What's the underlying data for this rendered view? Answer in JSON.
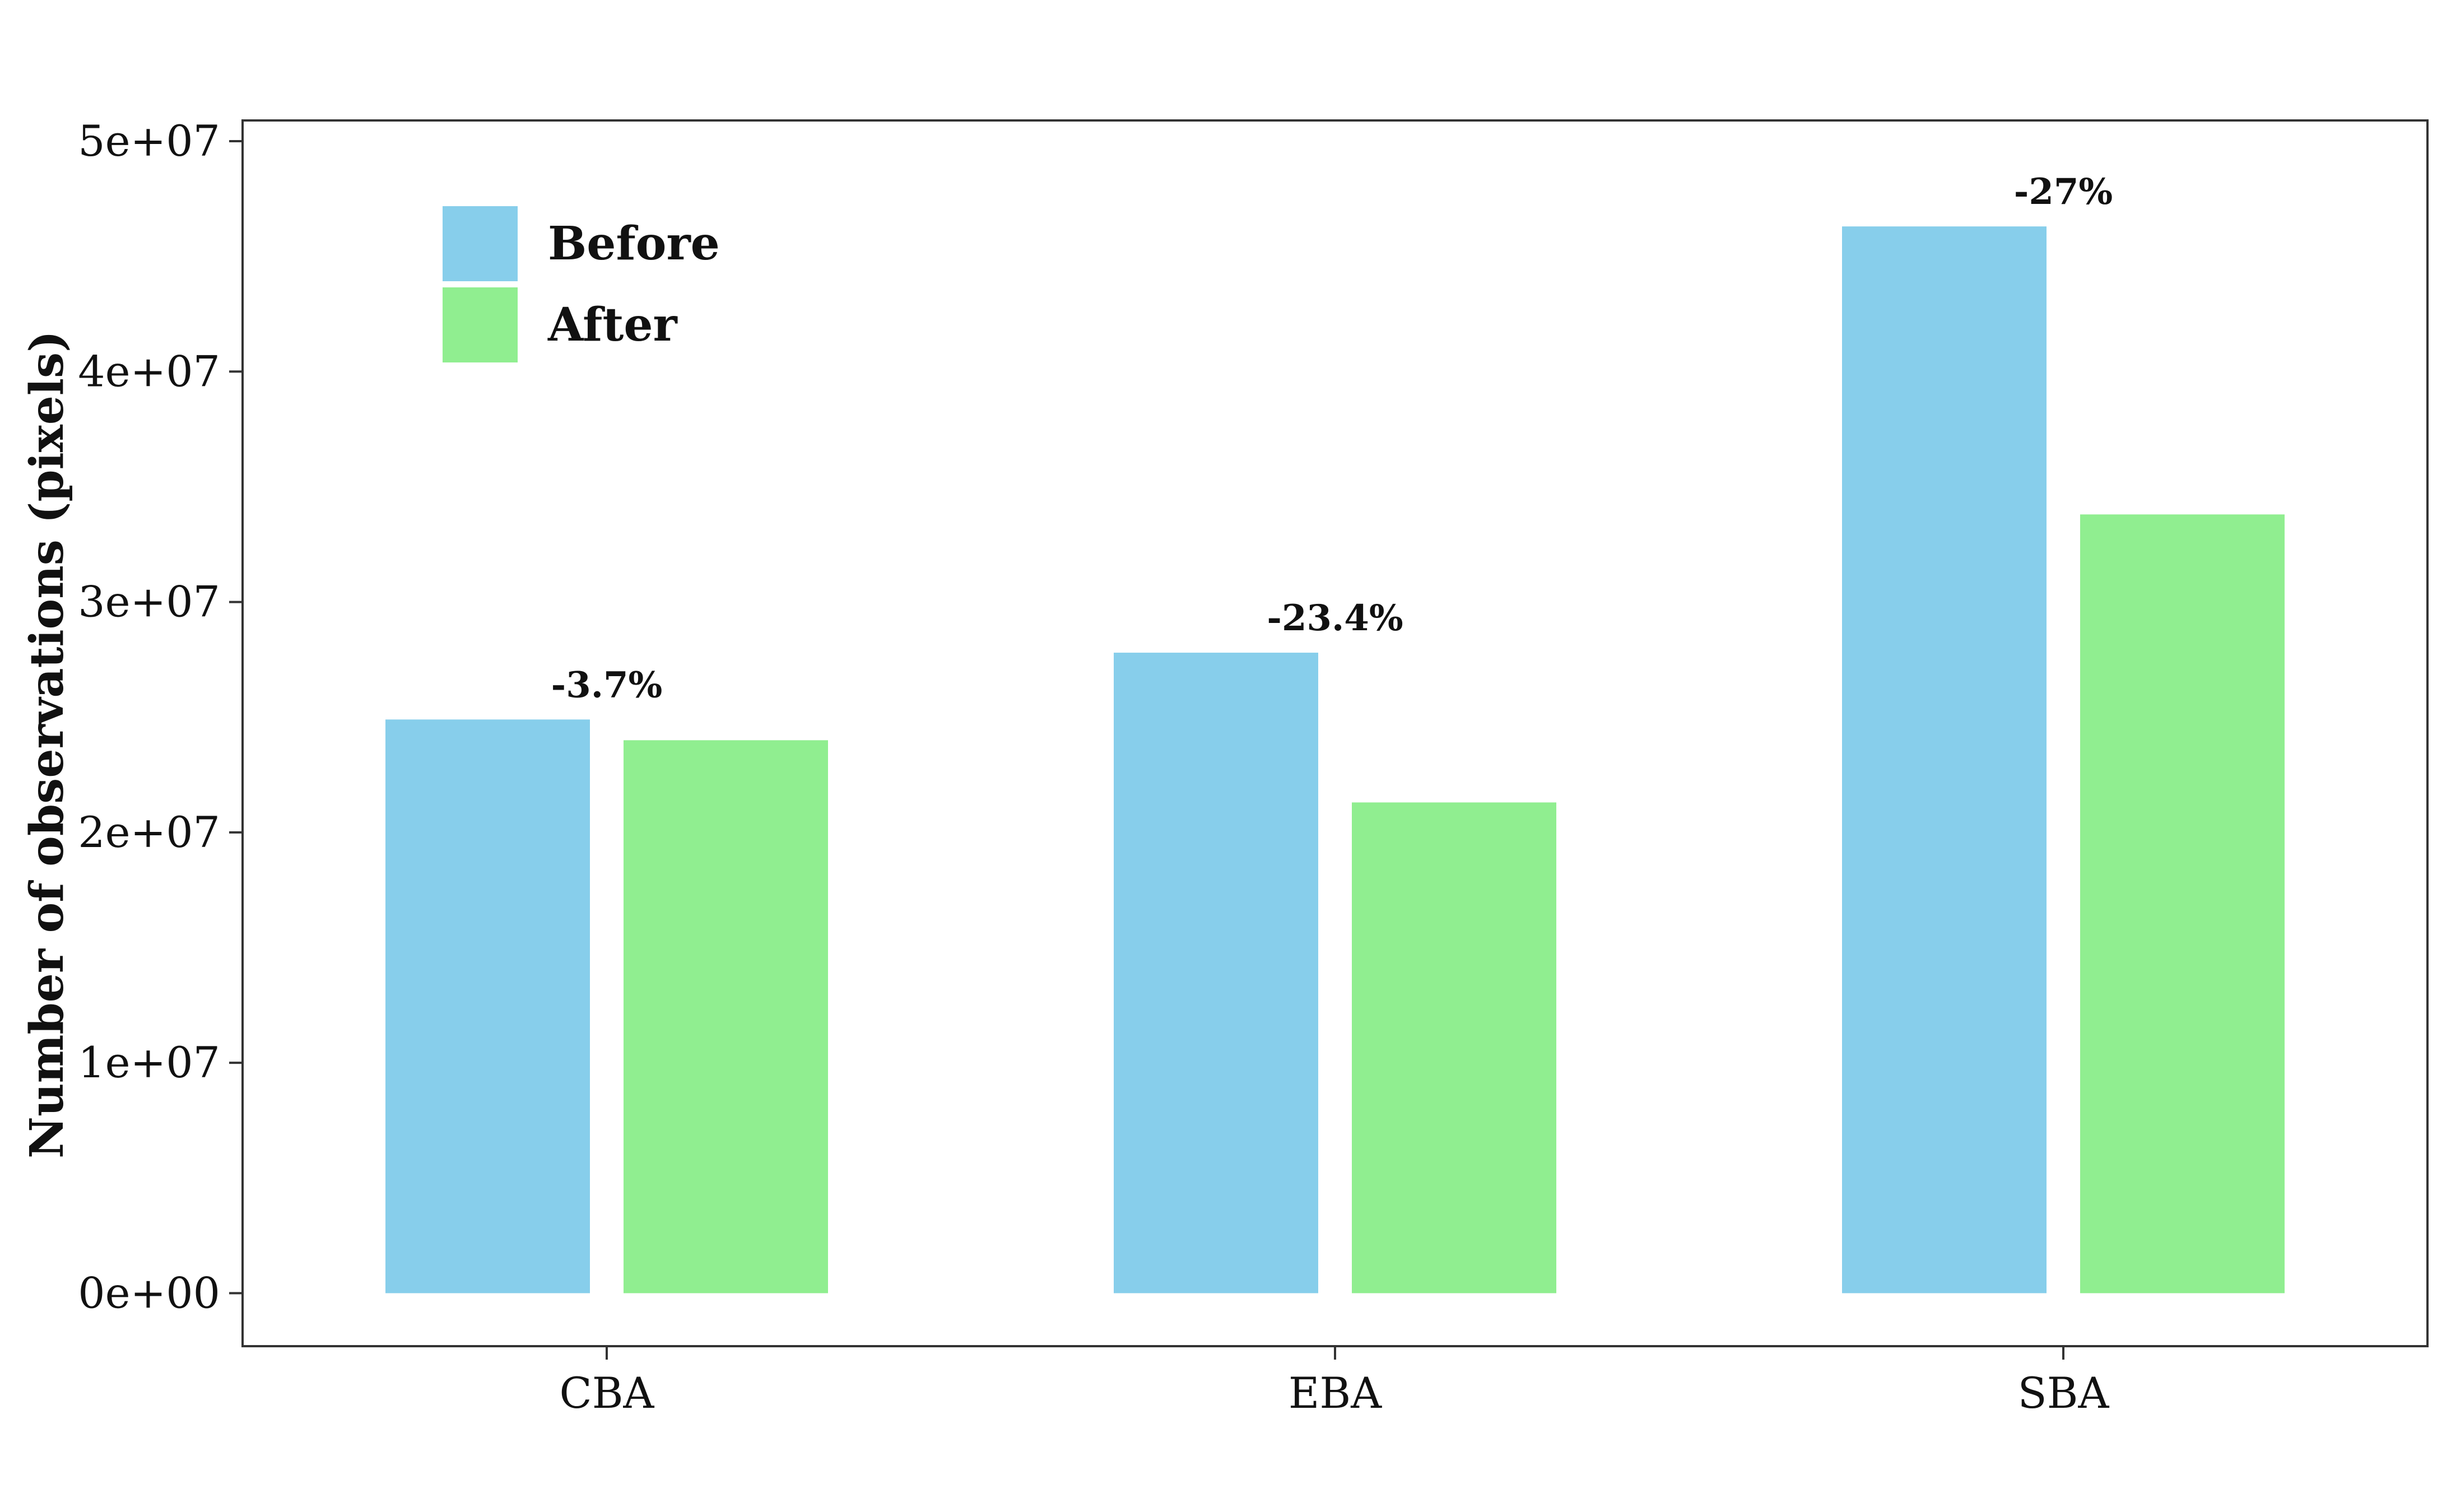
{
  "chart_data": {
    "type": "bar",
    "title": "",
    "xlabel": "",
    "ylabel": "Number of observations (pixels)",
    "categories": [
      "CBA",
      "EBA",
      "SBA"
    ],
    "series": [
      {
        "name": "Before",
        "values": [
          24900000,
          27800000,
          46300000
        ]
      },
      {
        "name": "After",
        "values": [
          24000000,
          21300000,
          33800000
        ]
      }
    ],
    "annotations": [
      "-3.7%",
      "-23.4%",
      "-27%"
    ],
    "ylim": [
      -2300000,
      50900000
    ],
    "yticks": [
      0,
      10000000,
      20000000,
      30000000,
      40000000,
      50000000
    ],
    "ytick_labels": [
      "0e+00",
      "1e+07",
      "2e+07",
      "3e+07",
      "4e+07",
      "5e+07"
    ],
    "grid": false,
    "legend_position": "top-left",
    "colors": {
      "Before": "#87CEEB",
      "After": "#90EE90"
    }
  }
}
